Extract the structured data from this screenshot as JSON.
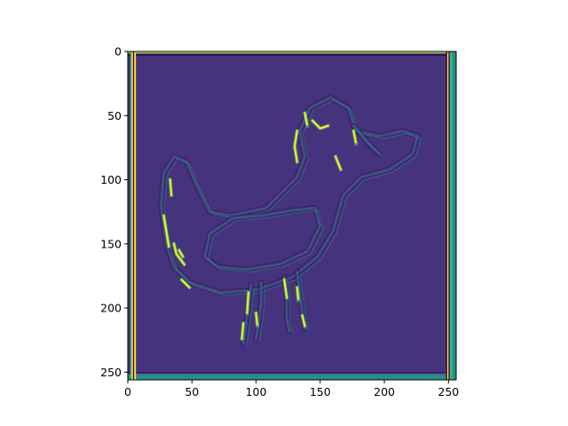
{
  "figure": {
    "background": "#ffffff"
  },
  "chart_data": {
    "type": "heatmap",
    "title": "",
    "xlabel": "",
    "ylabel": "",
    "xlim": [
      0,
      256
    ],
    "ylim": [
      256,
      0
    ],
    "y_inverted": true,
    "grid": false,
    "legend": "none",
    "colormap": "viridis",
    "colors": {
      "background_value": "#46337e",
      "dark": "#440154",
      "mid": "#2c7f8e",
      "teal": "#21918c",
      "green": "#35b779",
      "yellow": "#fde725"
    },
    "x_ticks": [
      {
        "value": 0,
        "label": "0"
      },
      {
        "value": 50,
        "label": "50"
      },
      {
        "value": 100,
        "label": "100"
      },
      {
        "value": 150,
        "label": "150"
      },
      {
        "value": 200,
        "label": "200"
      },
      {
        "value": 250,
        "label": "250"
      }
    ],
    "y_ticks": [
      {
        "value": 0,
        "label": "0"
      },
      {
        "value": 50,
        "label": "50"
      },
      {
        "value": 100,
        "label": "100"
      },
      {
        "value": 150,
        "label": "150"
      },
      {
        "value": 200,
        "label": "200"
      },
      {
        "value": 250,
        "label": "250"
      }
    ],
    "image_subject": "edge-detected line drawing of a duck",
    "outline_paths": [
      [
        [
          30,
          150
        ],
        [
          26,
          120
        ],
        [
          28,
          95
        ],
        [
          36,
          82
        ],
        [
          46,
          86
        ],
        [
          54,
          105
        ],
        [
          64,
          125
        ],
        [
          80,
          128
        ],
        [
          108,
          122
        ],
        [
          122,
          108
        ],
        [
          132,
          98
        ],
        [
          138,
          82
        ],
        [
          134,
          62
        ],
        [
          142,
          44
        ],
        [
          158,
          36
        ],
        [
          172,
          44
        ],
        [
          178,
          62
        ],
        [
          196,
          66
        ],
        [
          214,
          62
        ],
        [
          226,
          66
        ],
        [
          222,
          80
        ],
        [
          204,
          92
        ],
        [
          182,
          98
        ],
        [
          168,
          112
        ],
        [
          160,
          140
        ],
        [
          148,
          160
        ],
        [
          128,
          176
        ],
        [
          100,
          186
        ],
        [
          72,
          188
        ],
        [
          48,
          180
        ],
        [
          36,
          168
        ],
        [
          30,
          150
        ]
      ],
      [
        [
          60,
          160
        ],
        [
          64,
          142
        ],
        [
          82,
          130
        ],
        [
          104,
          128
        ],
        [
          128,
          124
        ],
        [
          146,
          122
        ],
        [
          150,
          136
        ],
        [
          140,
          156
        ],
        [
          118,
          166
        ],
        [
          92,
          170
        ],
        [
          70,
          168
        ],
        [
          60,
          160
        ]
      ],
      [
        [
          96,
          182
        ],
        [
          94,
          198
        ],
        [
          92,
          214
        ],
        [
          90,
          228
        ]
      ],
      [
        [
          104,
          180
        ],
        [
          104,
          196
        ],
        [
          102,
          212
        ],
        [
          100,
          224
        ]
      ],
      [
        [
          122,
          176
        ],
        [
          124,
          192
        ],
        [
          124,
          208
        ],
        [
          126,
          218
        ]
      ],
      [
        [
          132,
          172
        ],
        [
          134,
          188
        ],
        [
          136,
          204
        ],
        [
          138,
          216
        ]
      ],
      [
        [
          176,
          58
        ],
        [
          186,
          70
        ],
        [
          196,
          80
        ]
      ]
    ],
    "highlight_segments": [
      [
        [
          34,
          112
        ],
        [
          33,
          100
        ]
      ],
      [
        [
          28,
          128
        ],
        [
          30,
          140
        ],
        [
          32,
          152
        ]
      ],
      [
        [
          36,
          150
        ],
        [
          38,
          158
        ],
        [
          44,
          166
        ]
      ],
      [
        [
          40,
          155
        ],
        [
          43,
          160
        ]
      ],
      [
        [
          132,
          62
        ],
        [
          130,
          74
        ],
        [
          132,
          86
        ]
      ],
      [
        [
          138,
          48
        ],
        [
          140,
          58
        ]
      ],
      [
        [
          162,
          82
        ],
        [
          166,
          92
        ]
      ],
      [
        [
          176,
          62
        ],
        [
          178,
          72
        ]
      ],
      [
        [
          144,
          54
        ],
        [
          150,
          60
        ],
        [
          156,
          58
        ]
      ],
      [
        [
          94,
          188
        ],
        [
          93,
          204
        ]
      ],
      [
        [
          90,
          212
        ],
        [
          89,
          224
        ]
      ],
      [
        [
          100,
          204
        ],
        [
          101,
          214
        ]
      ],
      [
        [
          122,
          178
        ],
        [
          124,
          192
        ]
      ],
      [
        [
          132,
          184
        ],
        [
          133,
          194
        ]
      ],
      [
        [
          136,
          206
        ],
        [
          138,
          214
        ]
      ],
      [
        [
          42,
          178
        ],
        [
          48,
          184
        ]
      ]
    ],
    "border_columns": [
      {
        "x0": 2,
        "x1": 3,
        "value": "green"
      },
      {
        "x0": 3,
        "x1": 4,
        "value": "yellow"
      },
      {
        "x0": 4,
        "x1": 5,
        "value": "dark"
      },
      {
        "x0": 5,
        "x1": 6,
        "value": "yellow"
      },
      {
        "x0": 248,
        "x1": 249,
        "value": "dark"
      },
      {
        "x0": 249,
        "x1": 250,
        "value": "yellow"
      },
      {
        "x0": 250,
        "x1": 251,
        "value": "dark"
      },
      {
        "x0": 251,
        "x1": 253,
        "value": "green"
      },
      {
        "x0": 253,
        "x1": 256,
        "value": "teal"
      }
    ],
    "border_rows": [
      {
        "y0": 0,
        "y1": 1,
        "value": "yellow"
      },
      {
        "y0": 1,
        "y1": 2,
        "value": "teal"
      },
      {
        "y0": 2,
        "y1": 3,
        "value": "dark"
      },
      {
        "y0": 250,
        "y1": 251,
        "value": "dark"
      },
      {
        "y0": 251,
        "y1": 253,
        "value": "mid"
      },
      {
        "y0": 253,
        "y1": 256,
        "value": "teal"
      }
    ]
  }
}
